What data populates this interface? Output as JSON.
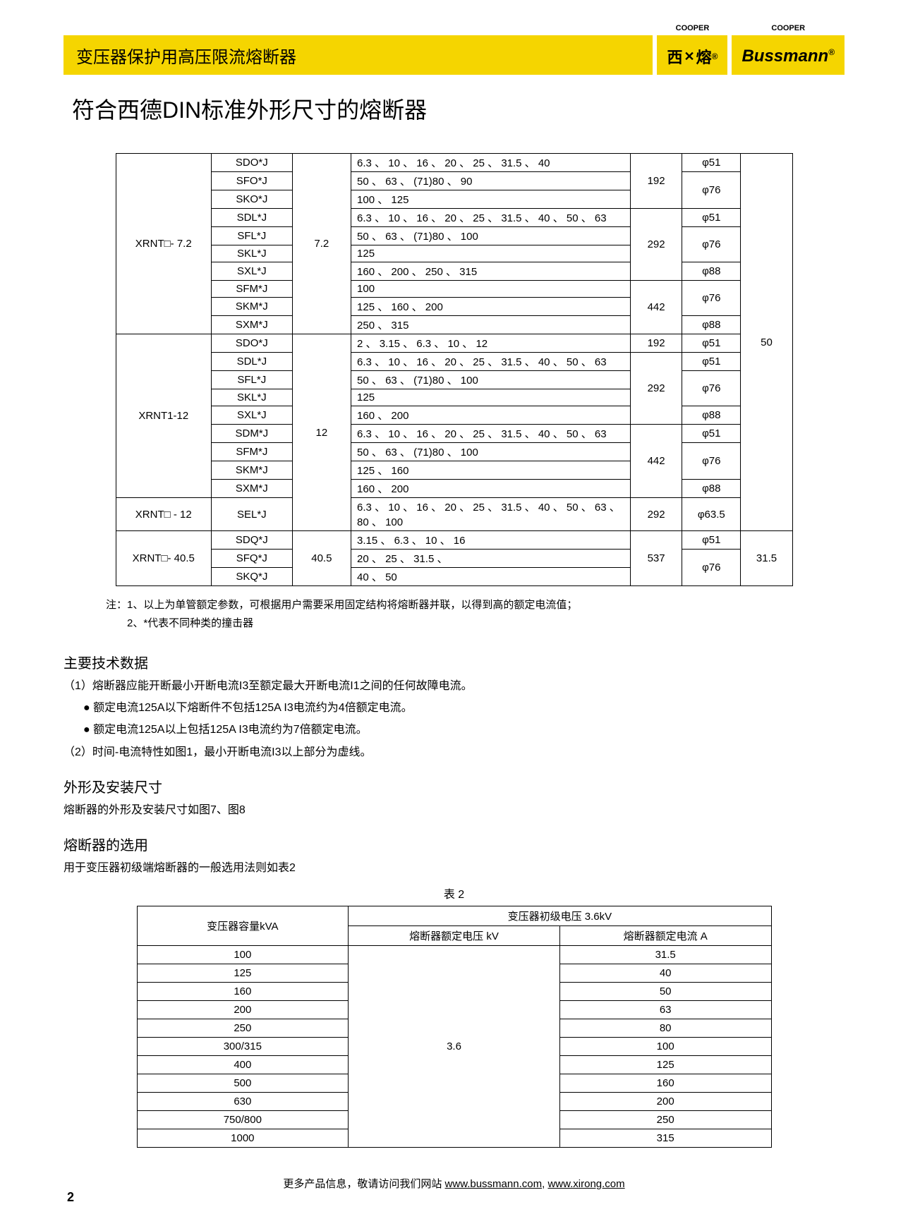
{
  "header": {
    "title_left": "变压器保护用高压限流熔断器",
    "cooper": "COOPER",
    "logo1_a": "西",
    "logo1_b": "熔",
    "logo2": "Bussmann",
    "reg": "®"
  },
  "page_title": "符合西德DIN标准外形尺寸的熔断器",
  "table1": {
    "groups": [
      {
        "model": "XRNT□- 7.2",
        "voltage": "7.2",
        "last": "50",
        "rows": [
          {
            "code": "SDO*J",
            "vals": "6.3 、 10 、 16 、 20 、 25 、 31.5 、 40",
            "d": "192",
            "phi": "φ51",
            "d_span": 3,
            "phi_span": 1
          },
          {
            "code": "SFO*J",
            "vals": "50 、 63 、 (71)80 、 90",
            "phi": "φ76",
            "phi_span": 2
          },
          {
            "code": "SKO*J",
            "vals": "100 、 125"
          },
          {
            "code": "SDL*J",
            "vals": "6.3 、 10 、 16 、 20 、 25 、 31.5 、 40 、 50 、 63",
            "d": "292",
            "phi": "φ51",
            "d_span": 4,
            "phi_span": 1
          },
          {
            "code": "SFL*J",
            "vals": "50 、 63 、 (71)80  、 100",
            "phi": "φ76",
            "phi_span": 2
          },
          {
            "code": "SKL*J",
            "vals": "125"
          },
          {
            "code": "SXL*J",
            "vals": "160 、 200 、 250 、 315",
            "phi": "φ88",
            "phi_span": 1
          },
          {
            "code": "SFM*J",
            "vals": "100",
            "d": "442",
            "phi": "φ76",
            "d_span": 3,
            "phi_span": 2
          },
          {
            "code": "SKM*J",
            "vals": "125 、 160 、 200"
          },
          {
            "code": "SXM*J",
            "vals": "250 、 315",
            "phi": "φ88",
            "phi_span": 1
          }
        ]
      },
      {
        "model": "XRNT1-12",
        "voltage": "12",
        "rows": [
          {
            "code": "SDO*J",
            "vals": "2 、 3.15 、 6.3 、 10 、 12",
            "d": "192",
            "phi": "φ51",
            "d_span": 1,
            "phi_span": 1
          },
          {
            "code": "SDL*J",
            "vals": "6.3 、 10 、 16 、 20 、 25 、 31.5 、 40 、 50 、 63",
            "d": "292",
            "phi": "φ51",
            "d_span": 4,
            "phi_span": 1
          },
          {
            "code": "SFL*J",
            "vals": "50 、 63 、 (71)80  、 100",
            "phi": "φ76",
            "phi_span": 2
          },
          {
            "code": "SKL*J",
            "vals": "125"
          },
          {
            "code": "SXL*J",
            "vals": "160 、 200",
            "phi": "φ88",
            "phi_span": 1
          },
          {
            "code": "SDM*J",
            "vals": "6.3 、 10 、 16 、 20 、 25 、 31.5 、 40 、 50 、 63",
            "d": "442",
            "phi": "φ51",
            "d_span": 4,
            "phi_span": 1
          },
          {
            "code": "SFM*J",
            "vals": "50 、 63 、 (71)80  、 100",
            "phi": "φ76",
            "phi_span": 2
          },
          {
            "code": "SKM*J",
            "vals": "125 、 160"
          },
          {
            "code": "SXM*J",
            "vals": "160 、 200",
            "phi": "φ88",
            "phi_span": 1
          }
        ]
      },
      {
        "model": "XRNT□ - 12",
        "rows": [
          {
            "code": "SEL*J",
            "vals": "6.3 、 10 、 16 、 20 、 25 、 31.5 、 40 、 50 、 63 、80 、 100",
            "d": "292",
            "phi": "φ63.5",
            "d_span": 1,
            "phi_span": 1
          }
        ]
      },
      {
        "model": "XRNT□- 40.5",
        "voltage": "40.5",
        "last": "31.5",
        "rows": [
          {
            "code": "SDQ*J",
            "vals": "3.15 、 6.3 、 10 、 16",
            "d": "537",
            "phi": "φ51",
            "d_span": 3,
            "phi_span": 1
          },
          {
            "code": "SFQ*J",
            "vals": "20 、 25 、 31.5 、",
            "phi": "φ76",
            "phi_span": 2
          },
          {
            "code": "SKQ*J",
            "vals": "40 、 50"
          }
        ]
      }
    ]
  },
  "notes": {
    "n1": "注：1、以上为单管额定参数，可根据用户需要采用固定结构将熔断器并联，以得到高的额定电流值；",
    "n2": "　　2、*代表不同种类的撞击器"
  },
  "sec1_title": "主要技术数据",
  "sec1_line1": "（1）熔断器应能开断最小开断电流I3至额定最大开断电流I1之间的任何故障电流。",
  "sec1_b1": "● 额定电流125A以下熔断件不包括125A I3电流约为4倍额定电流。",
  "sec1_b2": "● 额定电流125A以上包括125A I3电流约为7倍额定电流。",
  "sec1_line2": "（2）时间-电流特性如图1，最小开断电流I3以上部分为虚线。",
  "sec2_title": "外形及安装尺寸",
  "sec2_body": "熔断器的外形及安装尺寸如图7、图8",
  "sec3_title": "熔断器的选用",
  "sec3_body": "用于变压器初级端熔断器的一般选用法则如表2",
  "table2_caption": "表  2",
  "table2": {
    "h1": "变压器容量kVA",
    "h2": "变压器初级电压  3.6kV",
    "h3": "熔断器额定电压  kV",
    "h4": "熔断器额定电流 A",
    "voltage_val": "3.6",
    "rows": [
      {
        "cap": "100",
        "cur": "31.5"
      },
      {
        "cap": "125",
        "cur": "40"
      },
      {
        "cap": "160",
        "cur": "50"
      },
      {
        "cap": "200",
        "cur": "63"
      },
      {
        "cap": "250",
        "cur": "80"
      },
      {
        "cap": "300/315",
        "cur": "100"
      },
      {
        "cap": "400",
        "cur": "125"
      },
      {
        "cap": "500",
        "cur": "160"
      },
      {
        "cap": "630",
        "cur": "200"
      },
      {
        "cap": "750/800",
        "cur": "250"
      },
      {
        "cap": "1000",
        "cur": "315"
      }
    ]
  },
  "footer": {
    "text": "更多产品信息，敬请访问我们网站 ",
    "link1": "www.bussmann.com",
    "sep": ", ",
    "link2": "www.xirong.com"
  },
  "page_number": "2"
}
